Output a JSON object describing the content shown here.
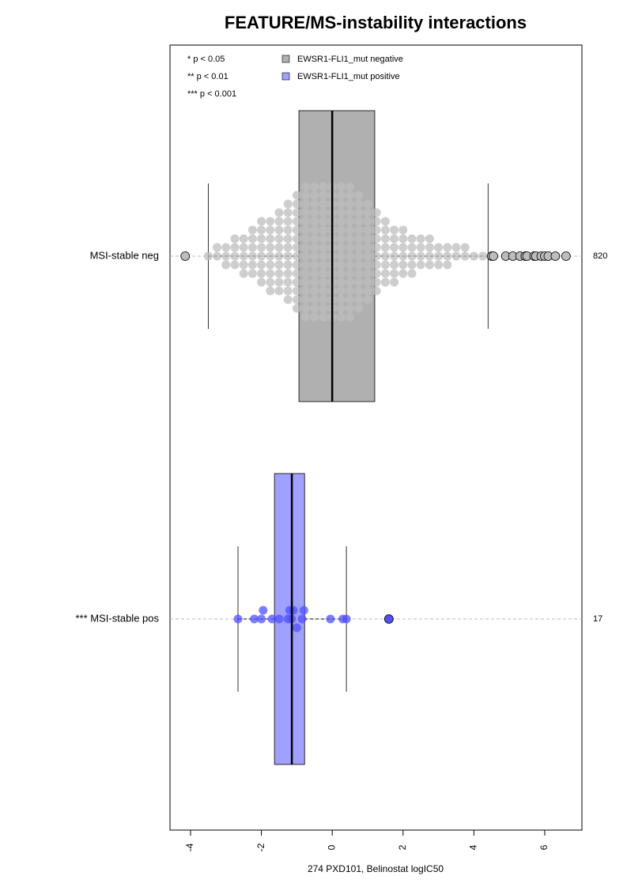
{
  "chart_data": {
    "type": "box",
    "title": "FEATURE/MS-instability interactions",
    "x_label": "274 PXD101, Belinostat logIC50",
    "xlim": [
      -4.58,
      7.05
    ],
    "xticks": [
      -4,
      -2,
      0,
      2,
      4,
      6
    ],
    "notes": [
      "* p < 0.05",
      "** p < 0.01",
      "*** p < 0.001"
    ],
    "series": [
      {
        "name": "EWSR1-FLI1_mut negative",
        "label": "MSI-stable neg",
        "n": 820,
        "color": "#b0b0b0",
        "point_color": "#bdbdbd",
        "whisker_low": -3.5,
        "q1": -0.94,
        "median": 0,
        "q3": 1.2,
        "whisker_high": 4.4,
        "outliers": [
          -4.15,
          4.5,
          4.55,
          4.9,
          5.1,
          5.3,
          5.45,
          5.5,
          5.7,
          5.75,
          5.9,
          6.0,
          6.1,
          6.3,
          6.6
        ],
        "points": [
          -3.5,
          -3.25,
          -3.25,
          -3,
          -3,
          -3,
          -2.75,
          -2.75,
          -2.75,
          -2.75,
          -2.5,
          -2.5,
          -2.5,
          -2.5,
          -2.5,
          -2.25,
          -2.25,
          -2.25,
          -2.25,
          -2.25,
          -2.25,
          -2,
          -2,
          -2,
          -2,
          -2,
          -2,
          -2,
          -2,
          -1.75,
          -1.75,
          -1.75,
          -1.75,
          -1.75,
          -1.75,
          -1.75,
          -1.75,
          -1.75,
          -1.5,
          -1.5,
          -1.5,
          -1.5,
          -1.5,
          -1.5,
          -1.5,
          -1.5,
          -1.5,
          -1.5,
          -1.25,
          -1.25,
          -1.25,
          -1.25,
          -1.25,
          -1.25,
          -1.25,
          -1.25,
          -1.25,
          -1.25,
          -1.25,
          -1.25,
          -1,
          -1,
          -1,
          -1,
          -1,
          -1,
          -1,
          -1,
          -1,
          -1,
          -1,
          -1,
          -1,
          -1,
          -0.75,
          -0.75,
          -0.75,
          -0.75,
          -0.75,
          -0.75,
          -0.75,
          -0.75,
          -0.75,
          -0.75,
          -0.75,
          -0.75,
          -0.75,
          -0.75,
          -0.75,
          -0.75,
          -0.5,
          -0.5,
          -0.5,
          -0.5,
          -0.5,
          -0.5,
          -0.5,
          -0.5,
          -0.5,
          -0.5,
          -0.5,
          -0.5,
          -0.5,
          -0.5,
          -0.5,
          -0.5,
          -0.25,
          -0.25,
          -0.25,
          -0.25,
          -0.25,
          -0.25,
          -0.25,
          -0.25,
          -0.25,
          -0.25,
          -0.25,
          -0.25,
          -0.25,
          -0.25,
          -0.25,
          -0.25,
          0,
          0,
          0,
          0,
          0,
          0,
          0,
          0,
          0,
          0,
          0,
          0,
          0,
          0,
          0,
          0,
          0.25,
          0.25,
          0.25,
          0.25,
          0.25,
          0.25,
          0.25,
          0.25,
          0.25,
          0.25,
          0.25,
          0.25,
          0.25,
          0.25,
          0.25,
          0.25,
          0.5,
          0.5,
          0.5,
          0.5,
          0.5,
          0.5,
          0.5,
          0.5,
          0.5,
          0.5,
          0.5,
          0.5,
          0.5,
          0.5,
          0.5,
          0.5,
          0.75,
          0.75,
          0.75,
          0.75,
          0.75,
          0.75,
          0.75,
          0.75,
          0.75,
          0.75,
          0.75,
          0.75,
          0.75,
          0.75,
          1,
          1,
          1,
          1,
          1,
          1,
          1,
          1,
          1,
          1,
          1,
          1,
          1.25,
          1.25,
          1.25,
          1.25,
          1.25,
          1.25,
          1.25,
          1.25,
          1.25,
          1.25,
          1.5,
          1.5,
          1.5,
          1.5,
          1.5,
          1.5,
          1.5,
          1.5,
          1.75,
          1.75,
          1.75,
          1.75,
          1.75,
          1.75,
          1.75,
          2,
          2,
          2,
          2,
          2,
          2,
          2.25,
          2.25,
          2.25,
          2.25,
          2.25,
          2.5,
          2.5,
          2.5,
          2.5,
          2.75,
          2.75,
          2.75,
          2.75,
          3,
          3,
          3,
          3.25,
          3.25,
          3.25,
          3.5,
          3.5,
          3.75,
          3.75,
          4,
          4.25
        ]
      },
      {
        "name": "EWSR1-FLI1_mut positive",
        "label": "*** MSI-stable pos",
        "n": 17,
        "color": "#a0a0ff",
        "point_color": "#5050ff",
        "whisker_low": -2.66,
        "q1": -1.63,
        "median": -1.14,
        "q3": -0.78,
        "whisker_high": 0.4,
        "outliers": [
          1.6
        ],
        "points": [
          -2.66,
          -2.2,
          -2.0,
          -1.95,
          -1.7,
          -1.5,
          -1.25,
          -1.2,
          -1.15,
          -1.1,
          -1.0,
          -0.85,
          -0.8,
          -0.05,
          0.3,
          0.4
        ]
      }
    ]
  }
}
